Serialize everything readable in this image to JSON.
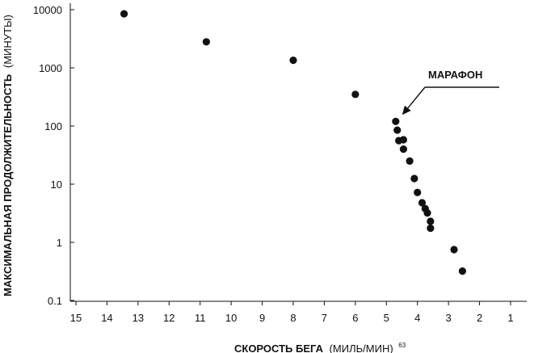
{
  "chart_data": {
    "type": "scatter",
    "title": "",
    "xlabel_main": "СКОРОСТЬ БЕГА",
    "xlabel_units": "(МИЛЬ/МИН)",
    "xlabel_note": "63",
    "ylabel_main": "МАКСИМАЛЬНАЯ ПРОДОЛЖИТЕЛЬНОСТЬ",
    "ylabel_units": "(МИНУТЫ)",
    "x_axis": {
      "reversed": true,
      "min": 1,
      "max": 15,
      "ticks": [
        15,
        14,
        13,
        12,
        11,
        10,
        9,
        8,
        7,
        6,
        5,
        4,
        3,
        2,
        1
      ],
      "tick_labels": [
        "15",
        "14",
        "13",
        "12",
        "11",
        "10",
        "9",
        "8",
        "7",
        "6",
        "5",
        "4",
        "3",
        "2",
        "1"
      ]
    },
    "y_axis": {
      "scale": "log",
      "min": 0.1,
      "max": 10000,
      "ticks": [
        0.1,
        1,
        10,
        100,
        1000,
        10000
      ],
      "tick_labels": [
        "0.1",
        "1",
        "10",
        "100",
        "1000",
        "10000"
      ]
    },
    "grid": false,
    "points": [
      {
        "x": 13.45,
        "y": 8500
      },
      {
        "x": 10.8,
        "y": 2800
      },
      {
        "x": 8.0,
        "y": 1350
      },
      {
        "x": 6.0,
        "y": 350
      },
      {
        "x": 4.7,
        "y": 120
      },
      {
        "x": 4.65,
        "y": 85
      },
      {
        "x": 4.6,
        "y": 56
      },
      {
        "x": 4.45,
        "y": 58
      },
      {
        "x": 4.45,
        "y": 40
      },
      {
        "x": 4.25,
        "y": 25
      },
      {
        "x": 4.1,
        "y": 12.5
      },
      {
        "x": 4.0,
        "y": 7.2
      },
      {
        "x": 3.85,
        "y": 4.8
      },
      {
        "x": 3.75,
        "y": 3.8
      },
      {
        "x": 3.68,
        "y": 3.2
      },
      {
        "x": 3.58,
        "y": 2.3
      },
      {
        "x": 3.58,
        "y": 1.75
      },
      {
        "x": 2.82,
        "y": 0.75
      },
      {
        "x": 2.55,
        "y": 0.32
      }
    ],
    "annotation": {
      "text": "МАРАФОН",
      "target": {
        "x": 4.7,
        "y": 120
      }
    }
  }
}
